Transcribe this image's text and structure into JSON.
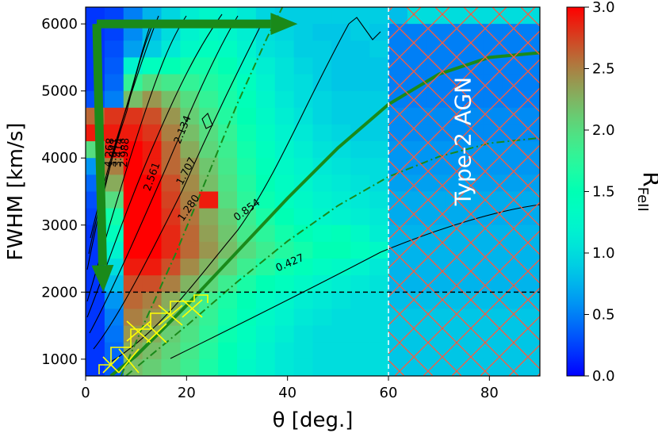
{
  "chart_data": {
    "type": "heatmap",
    "title": "",
    "xlabel": "θ [deg.]",
    "ylabel": "FWHM [km/s]",
    "xlim": [
      0,
      90
    ],
    "ylim": [
      750,
      6250
    ],
    "x_ticks": [
      0,
      20,
      40,
      60,
      80
    ],
    "y_ticks": [
      1000,
      2000,
      3000,
      4000,
      5000,
      6000
    ],
    "colorbar": {
      "label_main": "R",
      "label_sub": "FeII",
      "range": [
        0,
        3
      ],
      "ticks": [
        "0.0",
        "0.5",
        "1.0",
        "1.5",
        "2.0",
        "2.5",
        "3.0"
      ],
      "colormap": "rainbow"
    },
    "contour_labels": [
      {
        "text": "0.427",
        "x": 40.5,
        "y": 2430,
        "angle": -23
      },
      {
        "text": "0.854",
        "x": 32,
        "y": 3220,
        "angle": -36
      },
      {
        "text": "1.280",
        "x": 20.5,
        "y": 3250,
        "angle": -55
      },
      {
        "text": "1.707",
        "x": 20,
        "y": 3800,
        "angle": -62
      },
      {
        "text": "2.134",
        "x": 19.3,
        "y": 4420,
        "angle": -68
      },
      {
        "text": "2.561",
        "x": 13.2,
        "y": 3720,
        "angle": -70
      },
      {
        "text": "2.988",
        "x": 7.8,
        "y": 4080,
        "angle": -86
      },
      {
        "text": "3.414",
        "x": 6.6,
        "y": 4080,
        "angle": -86
      },
      {
        "text": "3.841",
        "x": 5.6,
        "y": 4080,
        "angle": -86
      },
      {
        "text": "4.268",
        "x": 4.8,
        "y": 4080,
        "angle": -86
      }
    ],
    "reference_lines": [
      {
        "orientation": "horizontal",
        "value": 2000,
        "style": "dashed",
        "color": "#000000"
      },
      {
        "orientation": "vertical",
        "value": 60,
        "style": "dashed",
        "color": "#ffffff"
      }
    ],
    "annotations": [
      {
        "text": "Type-2 AGN",
        "x": 75,
        "y": 4250,
        "angle": -90,
        "color": "#ffffff"
      }
    ],
    "regions": [
      {
        "name": "hatched-type2",
        "xrange": [
          60,
          90
        ],
        "yrange": [
          750,
          6250
        ],
        "color": "#ff6040"
      },
      {
        "name": "yellow-hatch",
        "color": "#ffff00"
      }
    ],
    "curves": [
      {
        "style": "solid-thick",
        "color": "#1a8a1a",
        "points": [
          [
            5,
            750
          ],
          [
            10,
            1050
          ],
          [
            20,
            1800
          ],
          [
            30,
            2600
          ],
          [
            40,
            3400
          ],
          [
            50,
            4150
          ],
          [
            60,
            4800
          ],
          [
            70,
            5250
          ],
          [
            80,
            5500
          ],
          [
            90,
            5570
          ]
        ]
      },
      {
        "style": "dashdot",
        "color": "#1a8a1a",
        "points": [
          [
            8,
            750
          ],
          [
            20,
            1500
          ],
          [
            30,
            2150
          ],
          [
            40,
            2760
          ],
          [
            50,
            3290
          ],
          [
            60,
            3720
          ],
          [
            70,
            4020
          ],
          [
            80,
            4220
          ],
          [
            90,
            4300
          ]
        ]
      },
      {
        "style": "dashdot",
        "color": "#1a8a1a",
        "points": [
          [
            7,
            750
          ],
          [
            12,
            1600
          ],
          [
            18,
            2600
          ],
          [
            24,
            3700
          ],
          [
            30,
            4800
          ],
          [
            36,
            5800
          ],
          [
            39,
            6250
          ]
        ]
      }
    ],
    "arrows": [
      {
        "from": [
          2.2,
          6000
        ],
        "to": [
          42,
          6000
        ],
        "color": "#1a8a1a"
      },
      {
        "from": [
          2.2,
          6000
        ],
        "to": [
          3.5,
          2000
        ],
        "color": "#1a8a1a"
      }
    ],
    "grid_cols": 24,
    "grid_rows": 22,
    "grid": [
      [
        0.2,
        0.25,
        0.5,
        0.75,
        0.95,
        1.15,
        1.25,
        1.2,
        1.1,
        0.95,
        0.9,
        0.9,
        0.9,
        0.9,
        0.9,
        0.9,
        0.8,
        1.0,
        1.0,
        1.0,
        1.0,
        1.0,
        1.0,
        1.0
      ],
      [
        0.2,
        0.25,
        0.55,
        0.8,
        1.0,
        1.2,
        1.3,
        1.25,
        1.15,
        1.0,
        0.95,
        0.9,
        0.85,
        0.85,
        0.9,
        0.85,
        0.5,
        0.5,
        0.5,
        0.5,
        0.5,
        0.5,
        0.5,
        0.5
      ],
      [
        0.2,
        0.3,
        0.65,
        0.9,
        1.1,
        1.3,
        1.4,
        1.35,
        1.2,
        1.05,
        1.0,
        0.9,
        0.9,
        0.85,
        0.85,
        0.9,
        0.5,
        0.5,
        0.5,
        0.5,
        0.5,
        0.5,
        0.5,
        0.5
      ],
      [
        0.2,
        0.35,
        1.2,
        1.4,
        1.5,
        1.6,
        1.6,
        1.5,
        1.3,
        1.15,
        1.05,
        0.95,
        0.9,
        0.85,
        0.85,
        0.85,
        0.5,
        0.5,
        0.5,
        0.5,
        0.5,
        0.5,
        0.5,
        0.5
      ],
      [
        0.2,
        0.4,
        1.8,
        2.0,
        1.9,
        1.8,
        1.7,
        1.6,
        1.4,
        1.2,
        1.05,
        1.0,
        0.9,
        0.85,
        0.85,
        0.85,
        0.5,
        0.5,
        0.5,
        0.5,
        0.5,
        0.5,
        0.5,
        0.5
      ],
      [
        0.3,
        0.5,
        2.2,
        2.4,
        2.2,
        2.0,
        1.8,
        1.65,
        1.45,
        1.25,
        1.1,
        1.0,
        0.95,
        0.9,
        0.9,
        0.9,
        0.5,
        0.5,
        0.5,
        0.5,
        0.5,
        0.5,
        0.5,
        0.5
      ],
      [
        2.6,
        2.8,
        2.8,
        2.7,
        2.4,
        2.1,
        1.9,
        1.7,
        1.5,
        1.3,
        1.15,
        1.05,
        0.95,
        0.9,
        0.9,
        0.9,
        0.55,
        0.55,
        0.55,
        0.55,
        0.55,
        0.55,
        0.55,
        0.55
      ],
      [
        2.9,
        2.9,
        2.9,
        2.8,
        2.5,
        2.2,
        2.0,
        1.8,
        1.55,
        1.35,
        1.2,
        1.1,
        1.0,
        0.95,
        0.9,
        0.9,
        0.55,
        0.55,
        0.55,
        0.55,
        0.55,
        0.55,
        0.55,
        0.55
      ],
      [
        2.0,
        2.9,
        3.0,
        2.9,
        2.6,
        2.3,
        2.05,
        1.85,
        1.6,
        1.4,
        1.25,
        1.15,
        1.05,
        1.0,
        0.95,
        0.95,
        0.6,
        0.6,
        0.6,
        0.6,
        0.6,
        0.6,
        0.6,
        0.6
      ],
      [
        0.6,
        2.5,
        3.0,
        2.9,
        2.6,
        2.4,
        2.15,
        1.9,
        1.65,
        1.45,
        1.3,
        1.2,
        1.1,
        1.05,
        1.0,
        1.0,
        0.6,
        0.6,
        0.6,
        0.6,
        0.6,
        0.6,
        0.6,
        0.6
      ],
      [
        0.4,
        2.3,
        3.0,
        3.0,
        2.7,
        2.45,
        2.2,
        1.95,
        1.7,
        1.5,
        1.35,
        1.25,
        1.15,
        1.1,
        1.05,
        1.0,
        0.65,
        0.65,
        0.65,
        0.65,
        0.65,
        0.65,
        0.65,
        0.65
      ],
      [
        0.3,
        2.0,
        3.0,
        3.0,
        2.75,
        2.5,
        2.9,
        2.0,
        1.75,
        1.55,
        1.4,
        1.3,
        1.2,
        1.15,
        1.1,
        1.05,
        0.7,
        0.7,
        0.7,
        0.7,
        0.7,
        0.7,
        0.7,
        0.7
      ],
      [
        0.25,
        1.6,
        3.0,
        3.0,
        2.8,
        2.55,
        2.3,
        2.1,
        1.85,
        1.65,
        1.5,
        1.35,
        1.25,
        1.2,
        1.15,
        1.1,
        0.7,
        0.7,
        0.7,
        0.7,
        0.7,
        0.7,
        0.7,
        0.7
      ],
      [
        0.2,
        1.4,
        3.0,
        3.0,
        2.85,
        2.6,
        2.35,
        2.15,
        1.9,
        1.75,
        1.6,
        1.5,
        1.4,
        1.45,
        1.3,
        1.15,
        0.75,
        0.75,
        0.75,
        0.75,
        0.75,
        0.75,
        0.75,
        0.75
      ],
      [
        0.2,
        1.2,
        3.0,
        3.0,
        2.85,
        2.6,
        2.4,
        2.2,
        2.0,
        1.85,
        1.7,
        1.6,
        1.5,
        1.5,
        1.4,
        1.3,
        0.75,
        0.75,
        0.75,
        0.75,
        0.75,
        0.75,
        0.75,
        0.75
      ],
      [
        0.2,
        1.0,
        2.9,
        2.9,
        2.7,
        2.45,
        2.25,
        2.05,
        1.85,
        1.7,
        1.55,
        1.45,
        1.35,
        1.3,
        1.2,
        1.1,
        0.75,
        0.75,
        0.75,
        0.75,
        0.75,
        0.75,
        0.75,
        0.75
      ],
      [
        0.2,
        0.8,
        2.7,
        2.7,
        2.5,
        2.25,
        2.05,
        1.85,
        1.65,
        1.5,
        1.4,
        1.3,
        1.2,
        1.15,
        1.1,
        1.05,
        0.75,
        0.75,
        0.75,
        0.75,
        0.75,
        0.75,
        0.75,
        0.75
      ],
      [
        0.2,
        0.6,
        2.6,
        2.5,
        2.3,
        2.05,
        1.85,
        1.65,
        1.5,
        1.35,
        1.25,
        1.15,
        1.1,
        1.05,
        1.0,
        1.0,
        0.8,
        0.8,
        0.8,
        0.8,
        0.8,
        0.8,
        0.8,
        0.8
      ],
      [
        0.2,
        0.5,
        2.5,
        2.4,
        2.2,
        2.0,
        1.8,
        1.6,
        1.45,
        1.3,
        1.2,
        1.1,
        1.05,
        1.0,
        1.0,
        1.0,
        0.85,
        0.85,
        0.85,
        0.85,
        0.85,
        0.85,
        0.85,
        0.85
      ],
      [
        0.2,
        0.45,
        2.4,
        2.3,
        2.1,
        1.95,
        1.75,
        1.55,
        1.4,
        1.25,
        1.15,
        1.05,
        1.0,
        1.0,
        1.0,
        1.0,
        0.85,
        0.85,
        0.85,
        0.85,
        0.85,
        0.85,
        0.85,
        0.85
      ],
      [
        0.2,
        0.4,
        2.3,
        2.2,
        2.05,
        1.9,
        1.7,
        1.5,
        1.35,
        1.2,
        1.1,
        1.05,
        1.0,
        1.0,
        1.0,
        1.0,
        0.85,
        0.85,
        0.85,
        0.85,
        0.85,
        0.85,
        0.85,
        0.85
      ],
      [
        0.2,
        0.35,
        2.2,
        2.1,
        2.0,
        1.85,
        1.65,
        1.5,
        1.3,
        1.2,
        1.1,
        1.05,
        1.0,
        1.0,
        1.0,
        1.0,
        0.85,
        0.85,
        0.85,
        0.85,
        0.85,
        0.85,
        0.85,
        0.85
      ]
    ]
  }
}
